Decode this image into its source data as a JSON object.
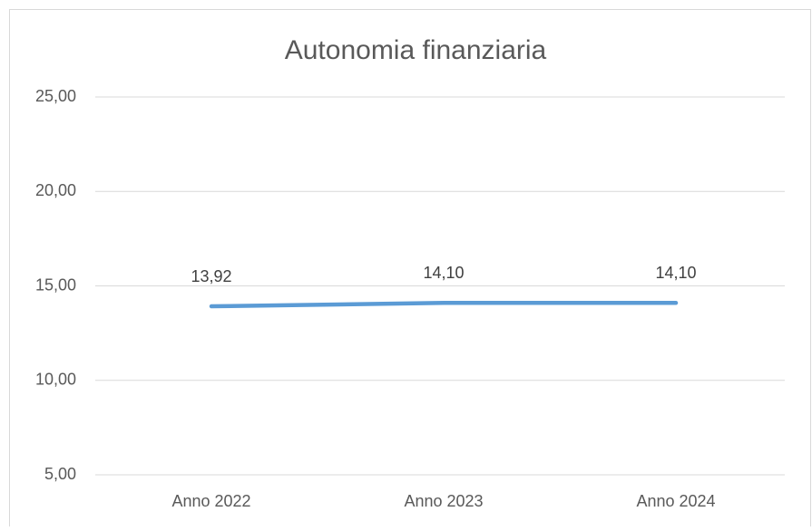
{
  "chart_data": {
    "type": "line",
    "title": "Autonomia finanziaria",
    "categories": [
      "Anno 2022",
      "Anno 2023",
      "Anno 2024"
    ],
    "series": [
      {
        "name": "Autonomia finanziaria",
        "color": "#5b9bd5",
        "values": [
          13.92,
          14.1,
          14.1
        ],
        "value_labels": [
          "13,92",
          "14,10",
          "14,10"
        ]
      }
    ],
    "ylim": [
      5,
      25
    ],
    "yticks": [
      {
        "value": 5,
        "label": "5,00"
      },
      {
        "value": 10,
        "label": "10,00"
      },
      {
        "value": 15,
        "label": "15,00"
      },
      {
        "value": 20,
        "label": "20,00"
      },
      {
        "value": 25,
        "label": "25,00"
      }
    ],
    "grid": true
  }
}
